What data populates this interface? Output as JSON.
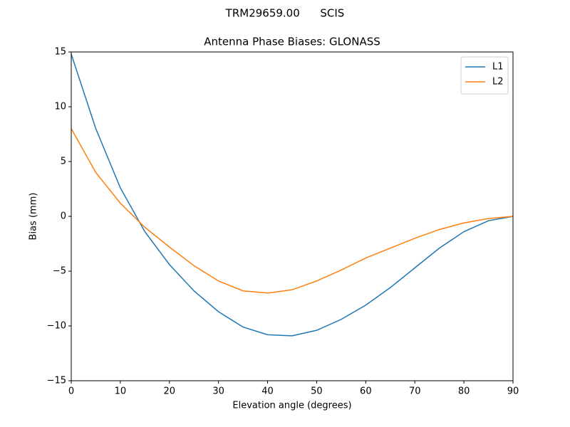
{
  "chart_data": {
    "type": "line",
    "suptitle": "TRM29659.00      SCIS",
    "title": "Antenna Phase Biases: GLONASS",
    "xlabel": "Elevation angle (degrees)",
    "ylabel": "Bias (mm)",
    "x": [
      0,
      5,
      10,
      15,
      20,
      25,
      30,
      35,
      40,
      45,
      50,
      55,
      60,
      65,
      70,
      75,
      80,
      85,
      90
    ],
    "series": [
      {
        "name": "L1",
        "color": "#1f77b4",
        "values": [
          14.8,
          8.0,
          2.6,
          -1.4,
          -4.4,
          -6.8,
          -8.7,
          -10.1,
          -10.8,
          -10.9,
          -10.4,
          -9.4,
          -8.1,
          -6.5,
          -4.7,
          -2.9,
          -1.4,
          -0.4,
          0
        ]
      },
      {
        "name": "L2",
        "color": "#ff7f0e",
        "values": [
          8.0,
          4.0,
          1.2,
          -1.0,
          -2.8,
          -4.5,
          -5.9,
          -6.8,
          -7.0,
          -6.7,
          -5.9,
          -4.9,
          -3.8,
          -2.9,
          -2.0,
          -1.2,
          -0.6,
          -0.2,
          0
        ]
      }
    ],
    "xlim": [
      0,
      90
    ],
    "xticks": [
      0,
      10,
      20,
      30,
      40,
      50,
      60,
      70,
      80,
      90
    ],
    "ylim": [
      -15,
      15
    ],
    "yticks": [
      {
        "value": -15,
        "label": "−15"
      },
      {
        "value": -10,
        "label": "−10"
      },
      {
        "value": -5,
        "label": "−5"
      },
      0,
      5,
      10,
      15
    ],
    "grid": false,
    "legend": "upper right"
  }
}
